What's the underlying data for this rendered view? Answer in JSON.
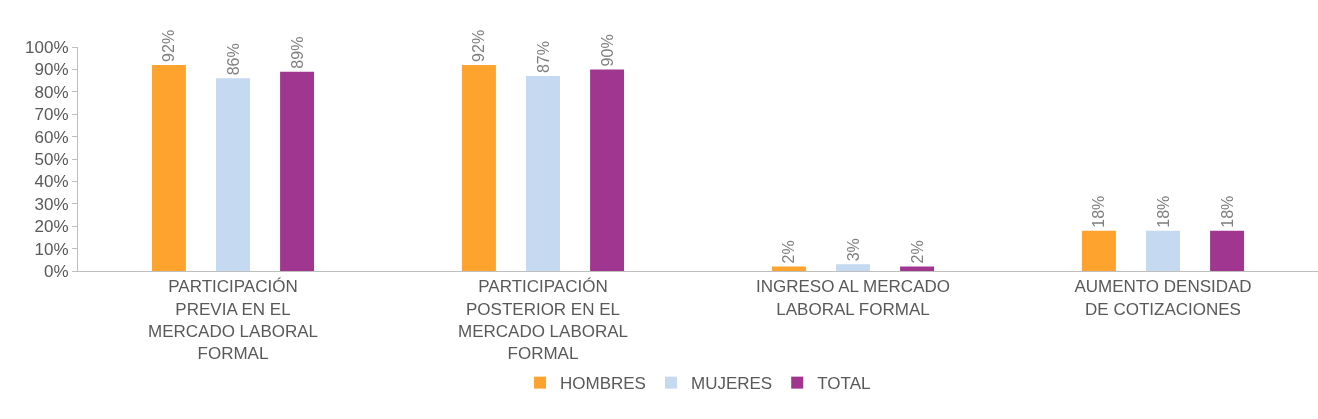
{
  "chart_data": {
    "type": "bar",
    "categories": [
      "PARTICIPACIÓN PREVIA EN EL MERCADO LABORAL FORMAL",
      "PARTICIPACIÓN POSTERIOR EN EL MERCADO LABORAL FORMAL",
      "INGRESO AL MERCADO LABORAL FORMAL",
      "AUMENTO DENSIDAD DE COTIZACIONES"
    ],
    "series": [
      {
        "name": "HOMBRES",
        "color": "#ffa32f",
        "values": [
          92,
          92,
          2,
          18
        ],
        "value_labels": [
          "92%",
          "92%",
          "2%",
          "18%"
        ]
      },
      {
        "name": "MUJERES",
        "color": "#c5d9f1",
        "values": [
          86,
          87,
          3,
          18
        ],
        "value_labels": [
          "86%",
          "87%",
          "3%",
          "18%"
        ]
      },
      {
        "name": "TOTAL",
        "color": "#a0368f",
        "values": [
          89,
          90,
          2,
          18
        ],
        "value_labels": [
          "89%",
          "90%",
          "2%",
          "18%"
        ]
      }
    ],
    "ylim": [
      0,
      100
    ],
    "yticks": [
      {
        "value": 0,
        "label": "0%"
      },
      {
        "value": 10,
        "label": "10%"
      },
      {
        "value": 20,
        "label": "20%"
      },
      {
        "value": 30,
        "label": "30%"
      },
      {
        "value": 40,
        "label": "40%"
      },
      {
        "value": 50,
        "label": "50%"
      },
      {
        "value": 60,
        "label": "60%"
      },
      {
        "value": 70,
        "label": "70%"
      },
      {
        "value": 80,
        "label": "80%"
      },
      {
        "value": 90,
        "label": "90%"
      },
      {
        "value": 100,
        "label": "100%"
      }
    ],
    "legend": "bottom"
  }
}
